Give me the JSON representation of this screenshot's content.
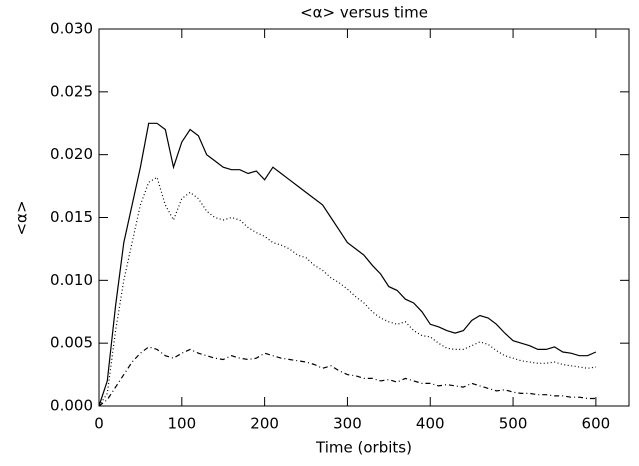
{
  "chart_data": {
    "type": "line",
    "title": "<α> versus time",
    "xlabel": "Time (orbits)",
    "ylabel": "<α>",
    "x": [
      0,
      10,
      20,
      30,
      40,
      50,
      60,
      70,
      80,
      90,
      100,
      110,
      120,
      130,
      140,
      150,
      160,
      170,
      180,
      190,
      200,
      210,
      220,
      230,
      240,
      250,
      260,
      270,
      280,
      290,
      300,
      310,
      320,
      330,
      340,
      350,
      360,
      370,
      380,
      390,
      400,
      410,
      420,
      430,
      440,
      450,
      460,
      470,
      480,
      490,
      500,
      510,
      520,
      530,
      540,
      550,
      560,
      570,
      580,
      590,
      600
    ],
    "series": [
      {
        "color": "#000000",
        "dash": "solid",
        "values": [
          0,
          0.002,
          0.008,
          0.013,
          0.016,
          0.019,
          0.0225,
          0.0225,
          0.022,
          0.019,
          0.021,
          0.022,
          0.0215,
          0.02,
          0.0195,
          0.019,
          0.0188,
          0.0188,
          0.0185,
          0.0187,
          0.018,
          0.019,
          0.0185,
          0.018,
          0.0175,
          0.017,
          0.0165,
          0.016,
          0.015,
          0.014,
          0.013,
          0.0125,
          0.012,
          0.0112,
          0.0105,
          0.0095,
          0.0092,
          0.0085,
          0.0082,
          0.0075,
          0.0065,
          0.0063,
          0.006,
          0.0058,
          0.006,
          0.0068,
          0.0072,
          0.007,
          0.0065,
          0.0058,
          0.0052,
          0.005,
          0.0048,
          0.0045,
          0.0045,
          0.0047,
          0.0043,
          0.0042,
          0.004,
          0.004,
          0.0043
        ]
      },
      {
        "color": "#000000",
        "dash": "dotted",
        "values": [
          0,
          0.001,
          0.006,
          0.01,
          0.013,
          0.016,
          0.0178,
          0.0182,
          0.016,
          0.0148,
          0.0165,
          0.017,
          0.0165,
          0.0155,
          0.015,
          0.0148,
          0.015,
          0.0148,
          0.0142,
          0.0138,
          0.0135,
          0.013,
          0.0128,
          0.0125,
          0.012,
          0.0118,
          0.0112,
          0.0108,
          0.0102,
          0.0098,
          0.0093,
          0.0087,
          0.0082,
          0.0075,
          0.007,
          0.0067,
          0.0065,
          0.0067,
          0.006,
          0.0056,
          0.0055,
          0.005,
          0.0046,
          0.0045,
          0.0045,
          0.0048,
          0.0051,
          0.0049,
          0.0044,
          0.004,
          0.0038,
          0.0036,
          0.0035,
          0.0034,
          0.0034,
          0.0035,
          0.0033,
          0.0032,
          0.0031,
          0.003,
          0.0031
        ]
      },
      {
        "color": "#000000",
        "dash": "dashdot",
        "values": [
          0,
          0.0005,
          0.0015,
          0.0025,
          0.0035,
          0.0042,
          0.0047,
          0.0045,
          0.004,
          0.0038,
          0.0042,
          0.0045,
          0.0042,
          0.004,
          0.0038,
          0.0037,
          0.004,
          0.0038,
          0.0037,
          0.0038,
          0.0042,
          0.004,
          0.0038,
          0.0037,
          0.0036,
          0.0035,
          0.0033,
          0.003,
          0.0032,
          0.0028,
          0.0025,
          0.0024,
          0.0022,
          0.0022,
          0.002,
          0.0021,
          0.0019,
          0.0022,
          0.002,
          0.0018,
          0.0018,
          0.0016,
          0.0017,
          0.0016,
          0.0015,
          0.0018,
          0.0016,
          0.0014,
          0.0012,
          0.0013,
          0.0011,
          0.001,
          0.001,
          0.0009,
          0.0009,
          0.0008,
          0.0008,
          0.0007,
          0.0007,
          0.0006,
          0.0006
        ]
      }
    ],
    "xlim": [
      0,
      640
    ],
    "ylim": [
      0,
      0.03
    ],
    "xticks": [
      0,
      100,
      200,
      300,
      400,
      500,
      600
    ],
    "yticks": [
      {
        "value": 0,
        "label": "0.000"
      },
      {
        "value": 0.005,
        "label": "0.005"
      },
      {
        "value": 0.01,
        "label": "0.010"
      },
      {
        "value": 0.015,
        "label": "0.015"
      },
      {
        "value": 0.02,
        "label": "0.020"
      },
      {
        "value": 0.025,
        "label": "0.025"
      },
      {
        "value": 0.03,
        "label": "0.030"
      }
    ],
    "grid": false
  }
}
